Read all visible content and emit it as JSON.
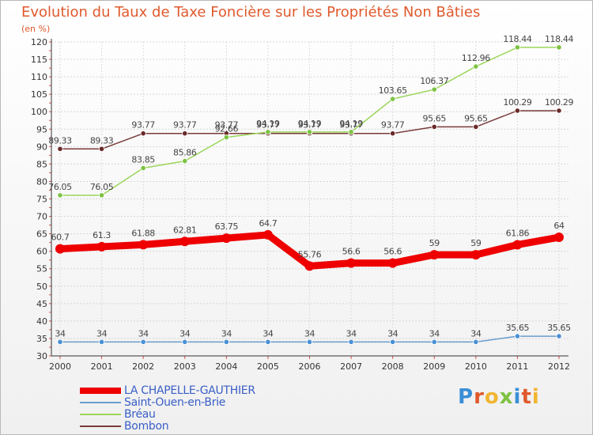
{
  "title": "Evolution du Taux de Taxe Foncière sur les Propriétés Non Bâties",
  "unit_label": "(en %)",
  "logo": {
    "text": "Proxiti",
    "letters": [
      "P",
      "r",
      "o",
      "x",
      "i",
      "t",
      "i"
    ],
    "colors": [
      "#3a8fd6",
      "#e0592c",
      "#f2b531",
      "#7dc243",
      "#3a8fd6",
      "#e0592c",
      "#f2b531"
    ]
  },
  "chart_data": {
    "type": "line",
    "x": [
      "2000",
      "2001",
      "2002",
      "2003",
      "2004",
      "2005",
      "2006",
      "2007",
      "2008",
      "2009",
      "2010",
      "2011",
      "2012"
    ],
    "ylim": [
      30,
      120
    ],
    "yticks": [
      30,
      35,
      40,
      45,
      50,
      55,
      60,
      65,
      70,
      75,
      80,
      85,
      90,
      95,
      100,
      105,
      110,
      115,
      120
    ],
    "grid": true,
    "legend_position": "bottom-left",
    "series": [
      {
        "name": "LA CHAPELLE-GAUTHIER",
        "color": "#ee0000",
        "width": 9,
        "values": [
          60.7,
          61.3,
          61.88,
          62.81,
          63.75,
          64.7,
          55.76,
          56.6,
          56.6,
          59,
          59,
          61.86,
          64
        ],
        "labels": [
          "60.7",
          "61.3",
          "61.88",
          "62.81",
          "63.75",
          "64.7",
          "55.76",
          "56.6",
          "56.6",
          "59",
          "59",
          "61.86",
          "64"
        ]
      },
      {
        "name": "Saint-Ouen-en-Brie",
        "color": "#6a9ccc",
        "width": 1.5,
        "marker": "#4a90d6",
        "values": [
          34,
          34,
          34,
          34,
          34,
          34,
          34,
          34,
          34,
          34,
          34,
          35.65,
          35.65
        ],
        "labels": [
          "34",
          "34",
          "34",
          "34",
          "34",
          "34",
          "34",
          "34",
          "34",
          "34",
          "34",
          "35.65",
          "35.65"
        ]
      },
      {
        "name": "Bréau",
        "color": "#9bd65a",
        "width": 1.5,
        "marker": "#7dc243",
        "values": [
          76.05,
          76.05,
          83.85,
          85.86,
          92.66,
          94.19,
          94.19,
          94.19,
          103.65,
          106.37,
          112.96,
          118.44,
          118.44
        ],
        "labels": [
          "76.05",
          "76.05",
          "83.85",
          "85.86",
          "92.66",
          "94.19",
          "94.19",
          "94.19",
          "103.65",
          "106.37",
          "112.96",
          "118.44",
          "118.44"
        ]
      },
      {
        "name": "Bombon",
        "color": "#7a3b3b",
        "width": 1.5,
        "marker": "#6a2a2a",
        "values": [
          89.33,
          89.33,
          93.77,
          93.77,
          93.77,
          93.77,
          93.77,
          93.77,
          93.77,
          95.65,
          95.65,
          100.29,
          100.29
        ],
        "labels": [
          "89.33",
          "89.33",
          "93.77",
          "93.77",
          "93.77",
          "93.77",
          "93.77",
          "93.77",
          "93.77",
          "95.65",
          "95.65",
          "100.29",
          "100.29"
        ]
      }
    ]
  }
}
